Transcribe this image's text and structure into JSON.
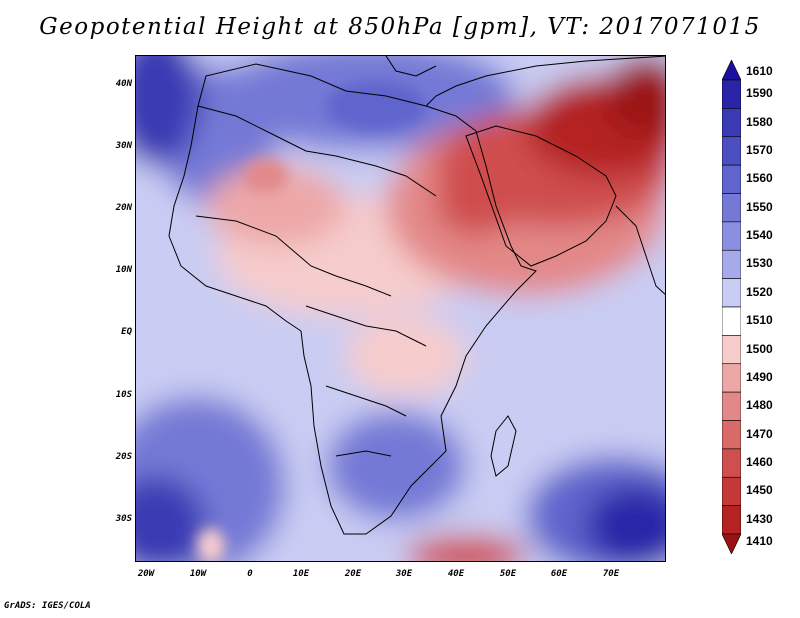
{
  "title": "Geopotential Height at 850hPa [gpm], VT: 2017071015",
  "credit": "GrADS: IGES/COLA",
  "map": {
    "y_labels": [
      "40N",
      "30N",
      "20N",
      "10N",
      "EQ",
      "10S",
      "20S",
      "30S"
    ],
    "x_labels": [
      "20W",
      "10W",
      "0",
      "10E",
      "20E",
      "30E",
      "40E",
      "50E",
      "60E",
      "70E"
    ]
  },
  "colorbar": {
    "labels": [
      "1610",
      "1590",
      "1580",
      "1570",
      "1560",
      "1550",
      "1540",
      "1530",
      "1520",
      "1510",
      "1500",
      "1490",
      "1480",
      "1470",
      "1460",
      "1450",
      "1430",
      "1410"
    ],
    "colors": [
      "#1a0f9e",
      "#2a25a8",
      "#3a3ab4",
      "#4c4fc0",
      "#5f65cc",
      "#7479d6",
      "#8b8fe0",
      "#a6aaea",
      "#c9ccf3",
      "#ffffff",
      "#f6cccc",
      "#eda7a7",
      "#e38888",
      "#d96a6a",
      "#cf4e4e",
      "#c43838",
      "#b42222",
      "#9b1212"
    ]
  }
}
